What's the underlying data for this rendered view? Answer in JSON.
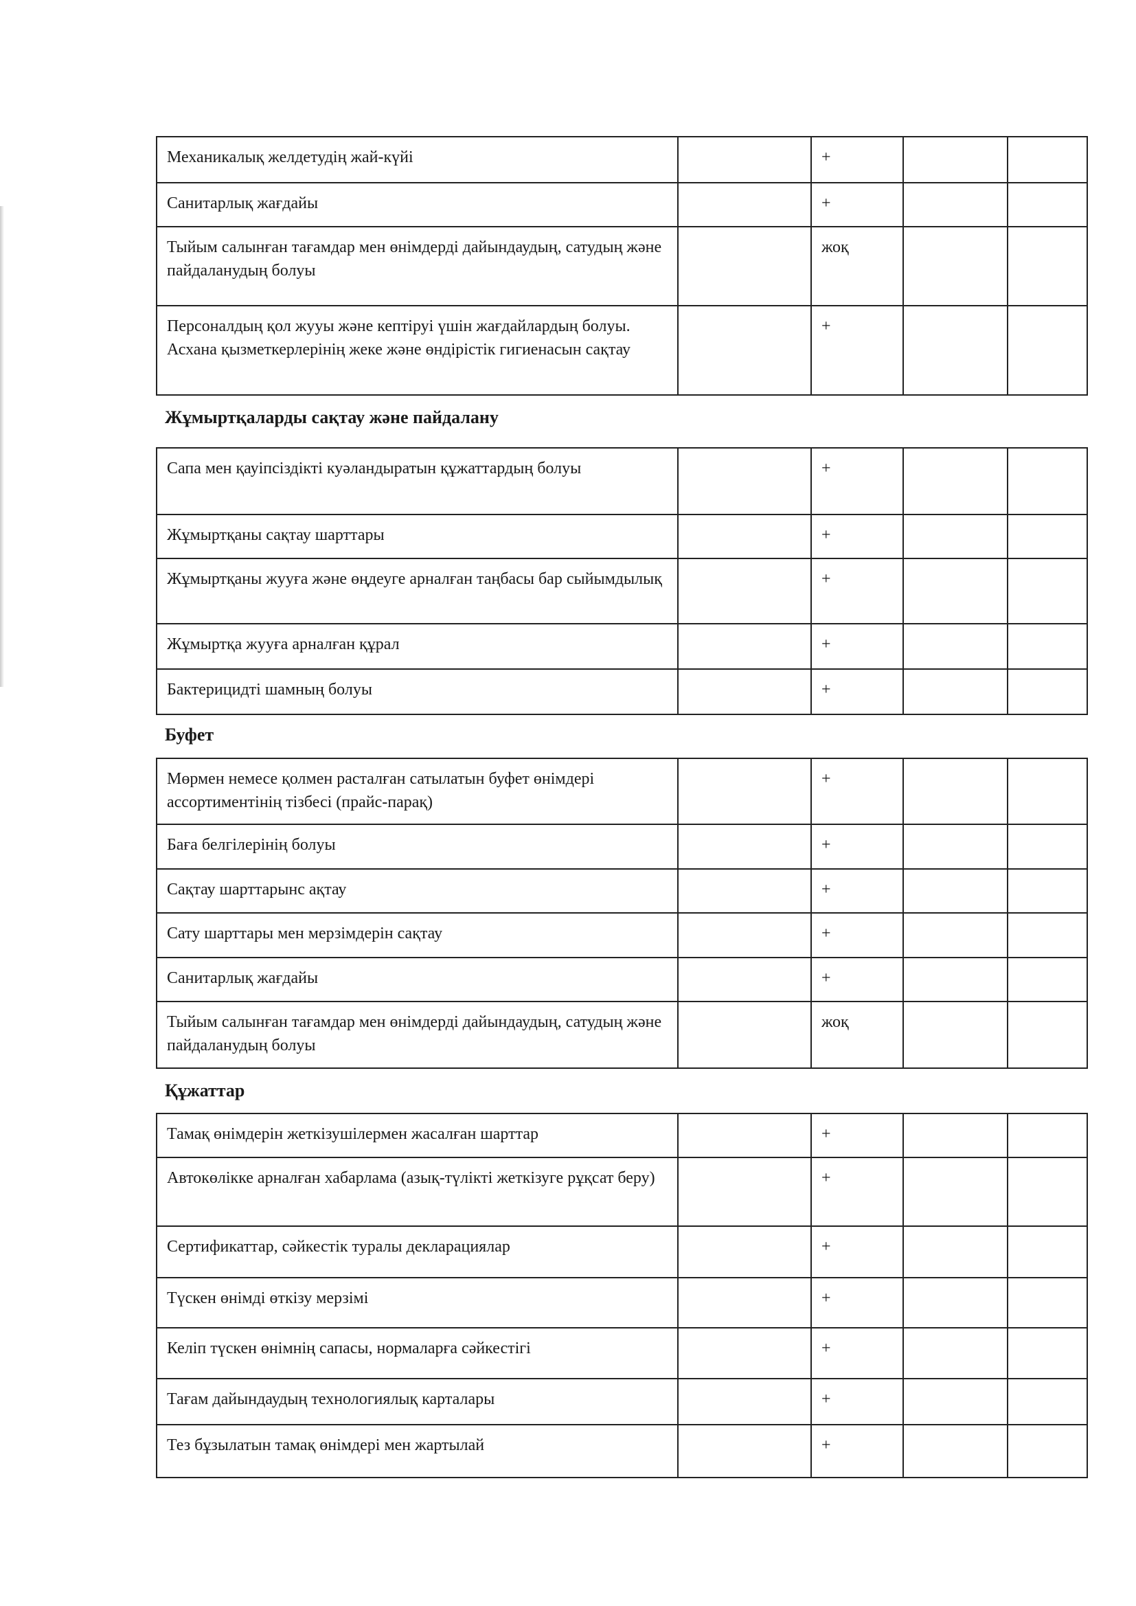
{
  "sections": [
    {
      "heading": "",
      "rows": [
        {
          "text": "Механикалық желдетудің жай-күйі",
          "mark": "+"
        },
        {
          "text": "Санитарлық жағдайы",
          "mark": "+"
        },
        {
          "text": "Тыйым  салынған тағамдар  мен  өнімдерді дайындаудың, сатудың және пайдаланудың болуы",
          "mark": "жоқ"
        },
        {
          "text": "Персоналдың қол жууы және кептіруі үшін жағдайлардың  болуы. Асхана қызметкерлерінің жеке және өндірістік гигиенасын  сақтау",
          "mark": "+"
        }
      ]
    },
    {
      "heading": "Жұмыртқаларды сақтау және пайдалану",
      "rows": [
        {
          "text": "Сапа мен қауіпсіздікті куәландыратын құжаттардың болуы",
          "mark": "+"
        },
        {
          "text": "Жұмыртқаны сақтау шарттары",
          "mark": "+"
        },
        {
          "text": "Жұмыртқаны жууға және өңдеуге арналған таңбасы бар сыйымдылық",
          "mark": "+"
        },
        {
          "text": "Жұмыртқа  жууға арналған  құрал",
          "mark": "+"
        },
        {
          "text": "Бактерицидті  шамның болуы",
          "mark": "+"
        }
      ]
    },
    {
      "heading": "Буфет",
      "rows": [
        {
          "text": "Мөрмен немесе қолмен расталған  сатылатын  буфет өнімдері ассортиментінің  тізбесі (прайс-парақ)",
          "mark": "+"
        },
        {
          "text": "Баға белгілерінің болуы",
          "mark": "+"
        },
        {
          "text": "Сақтау шарттарынс ақтау",
          "mark": "+"
        },
        {
          "text": "Сату шарттары мен мерзімдерін сақтау",
          "mark": "+"
        },
        {
          "text": "Санитарлық жағдайы",
          "mark": "+"
        },
        {
          "text": "Тыйым салынған тағамдар мен өнімдерді дайындаудың, сатудың және пайдаланудың болуы",
          "mark": "жоқ"
        }
      ]
    },
    {
      "heading": "Құжаттар",
      "rows": [
        {
          "text": "Тамақ өнімдерін жеткізушілермен  жасалған шарттар",
          "mark": "+"
        },
        {
          "text": "Автокөлікке арналған  хабарлама (азық-түлікті жеткізуге рұқсат беру)",
          "mark": "+"
        },
        {
          "text": "Сертификаттар, сәйкестік туралы декларациялар",
          "mark": "+"
        },
        {
          "text": "Түскен  өнімді өткізу  мерзімі",
          "mark": "+"
        },
        {
          "text": "Келіп түскен өнімнің сапасы, нормаларға сәйкестігі",
          "mark": "+"
        },
        {
          "text": "Тағам дайындаудың  технологиялық  карталары",
          "mark": "+"
        },
        {
          "text": "Тез бұзылатын тамақ  өнімдері мен жартылай",
          "mark": "+"
        }
      ]
    }
  ]
}
